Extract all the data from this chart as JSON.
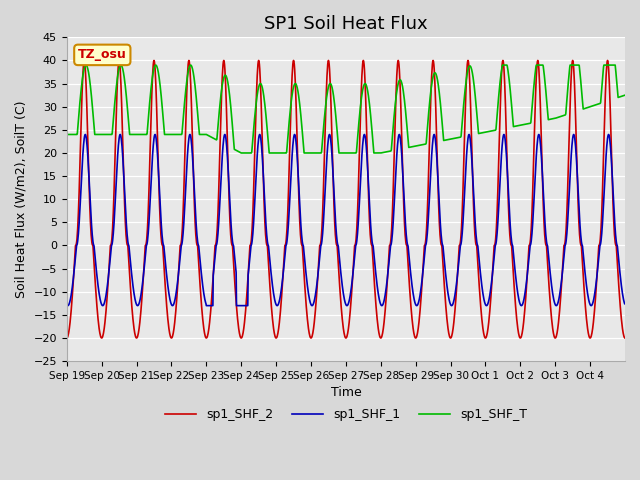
{
  "title": "SP1 Soil Heat Flux",
  "xlabel": "Time",
  "ylabel": "Soil Heat Flux (W/m2), SoilT (C)",
  "ylim": [
    -25,
    45
  ],
  "yticks": [
    -25,
    -20,
    -15,
    -10,
    -5,
    0,
    5,
    10,
    15,
    20,
    25,
    30,
    35,
    40,
    45
  ],
  "tz_label": "TZ_osu",
  "legend": [
    "sp1_SHF_2",
    "sp1_SHF_1",
    "sp1_SHF_T"
  ],
  "colors_red": "#cc0000",
  "colors_blue": "#0000bb",
  "colors_green": "#00bb00",
  "line_width": 1.2,
  "x_tick_labels": [
    "Sep 19",
    "Sep 20",
    "Sep 21",
    "Sep 22",
    "Sep 23",
    "Sep 24",
    "Sep 25",
    "Sep 26",
    "Sep 27",
    "Sep 28",
    "Sep 29",
    "Sep 30",
    "Oct 1",
    "Oct 2",
    "Oct 3",
    "Oct 4"
  ],
  "num_days": 16,
  "title_fontsize": 13
}
